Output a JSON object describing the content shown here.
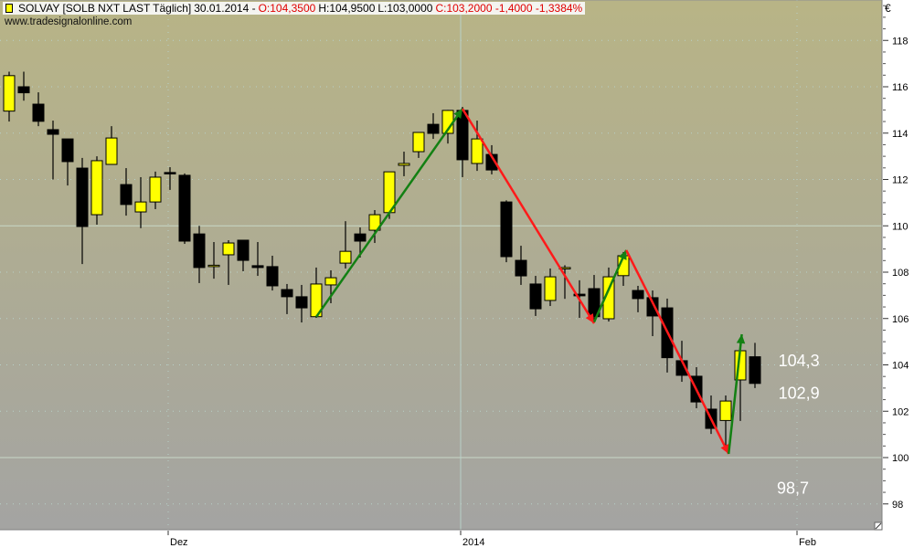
{
  "header": {
    "title": "SOLVAY [SOLB NXT LAST Täglich]",
    "date": "30.01.2014 -",
    "open": "O:104,3500",
    "high": "H:104,9500",
    "low": "L:103,0000",
    "close_change": "C:103,2000 -1,4000 -1,3384%",
    "website": "www.tradesignalonline.com",
    "currency": "€"
  },
  "colors": {
    "up": "#ffff00",
    "down": "#000000",
    "bg_top": "#b8b486",
    "bg_bottom": "#a4a4a2",
    "arrow_up": "#138013",
    "arrow_down": "#ff1a1a",
    "annotation": "#ffffff"
  },
  "chart_data": {
    "type": "candlestick",
    "ylim": [
      96.6,
      119.7
    ],
    "yticks": [
      98,
      100,
      102,
      104,
      106,
      108,
      110,
      112,
      114,
      116,
      118
    ],
    "xticks": [
      {
        "index": 11,
        "label": "Dez"
      },
      {
        "index": 31,
        "label": "2014"
      },
      {
        "index": 54,
        "label": "Feb"
      }
    ],
    "grid": true,
    "candles": [
      [
        114.95,
        116.65,
        114.5,
        116.48
      ],
      [
        116.0,
        116.65,
        115.4,
        115.74
      ],
      [
        115.25,
        115.76,
        114.3,
        114.51
      ],
      [
        114.15,
        114.54,
        112.0,
        113.95
      ],
      [
        113.75,
        113.75,
        111.74,
        112.77
      ],
      [
        112.49,
        112.93,
        108.35,
        109.97
      ],
      [
        110.48,
        113.0,
        110.05,
        112.81
      ],
      [
        112.65,
        114.3,
        112.65,
        113.79
      ],
      [
        111.78,
        112.49,
        110.44,
        110.92
      ],
      [
        110.6,
        112.1,
        109.9,
        111.03
      ],
      [
        111.03,
        112.34,
        110.72,
        112.1
      ],
      [
        112.3,
        112.53,
        111.55,
        112.25
      ],
      [
        112.18,
        112.26,
        109.22,
        109.34
      ],
      [
        109.65,
        110.0,
        107.53,
        108.2
      ],
      [
        108.3,
        109.3,
        107.72,
        108.3
      ],
      [
        108.75,
        109.38,
        107.45,
        109.26
      ],
      [
        109.38,
        109.38,
        108.04,
        108.51
      ],
      [
        108.28,
        109.3,
        107.84,
        108.2
      ],
      [
        108.24,
        108.71,
        107.21,
        107.41
      ],
      [
        107.25,
        107.49,
        106.19,
        106.94
      ],
      [
        106.94,
        107.45,
        105.83,
        106.46
      ],
      [
        106.08,
        108.2,
        106.03,
        107.49
      ],
      [
        107.45,
        108.08,
        106.66,
        107.76
      ],
      [
        108.39,
        110.2,
        108.16,
        108.9
      ],
      [
        109.65,
        109.93,
        108.63,
        109.34
      ],
      [
        109.81,
        110.68,
        109.26,
        110.48
      ],
      [
        110.57,
        112.33,
        110.3,
        112.33
      ],
      [
        112.61,
        113.2,
        112.14,
        112.69
      ],
      [
        113.2,
        114.03,
        112.93,
        114.03
      ],
      [
        114.38,
        114.86,
        113.75,
        113.99
      ],
      [
        113.99,
        115.0,
        113.55,
        114.98
      ],
      [
        114.98,
        115.13,
        112.1,
        112.85
      ],
      [
        112.69,
        114.54,
        112.37,
        113.75
      ],
      [
        113.08,
        113.48,
        112.22,
        112.41
      ],
      [
        111.03,
        111.1,
        108.43,
        108.67
      ],
      [
        108.51,
        109.14,
        107.45,
        107.84
      ],
      [
        107.49,
        107.84,
        106.11,
        106.42
      ],
      [
        106.78,
        108.16,
        106.54,
        107.8
      ],
      [
        108.2,
        108.3,
        106.85,
        108.2
      ],
      [
        107.05,
        107.65,
        106.03,
        106.98
      ],
      [
        107.29,
        107.88,
        105.87,
        106.08
      ],
      [
        105.99,
        108.2,
        105.87,
        107.8
      ],
      [
        107.85,
        108.87,
        107.41,
        108.71
      ],
      [
        107.21,
        107.41,
        106.27,
        106.86
      ],
      [
        106.9,
        107.21,
        105.24,
        106.11
      ],
      [
        106.46,
        106.86,
        103.67,
        104.31
      ],
      [
        104.18,
        105.04,
        103.27,
        103.55
      ],
      [
        103.51,
        103.9,
        102.13,
        102.4
      ],
      [
        102.09,
        102.68,
        101.02,
        101.26
      ],
      [
        101.6,
        102.68,
        100.43,
        102.44
      ],
      [
        103.35,
        105.08,
        101.58,
        104.61
      ],
      [
        104.35,
        104.95,
        103.0,
        103.2
      ]
    ],
    "arrows": [
      {
        "from": [
          21,
          106.07
        ],
        "to": [
          31,
          115.05
        ],
        "direction": "up"
      },
      {
        "from": [
          31,
          115.05
        ],
        "to": [
          40,
          105.79
        ],
        "direction": "down"
      },
      {
        "from": [
          40,
          105.85
        ],
        "to": [
          42.2,
          108.95
        ],
        "direction": "up"
      },
      {
        "from": [
          42.2,
          108.95
        ],
        "to": [
          49.2,
          100.16
        ],
        "direction": "down"
      },
      {
        "from": [
          49.2,
          100.16
        ],
        "to": [
          50.1,
          105.32
        ],
        "direction": "up"
      }
    ],
    "annotations": [
      {
        "text": "104,3",
        "index": 52.6,
        "price": 104.1
      },
      {
        "text": "102,9",
        "index": 52.6,
        "price": 102.7
      },
      {
        "text": "98,7",
        "index": 52.5,
        "price": 98.6
      }
    ]
  }
}
